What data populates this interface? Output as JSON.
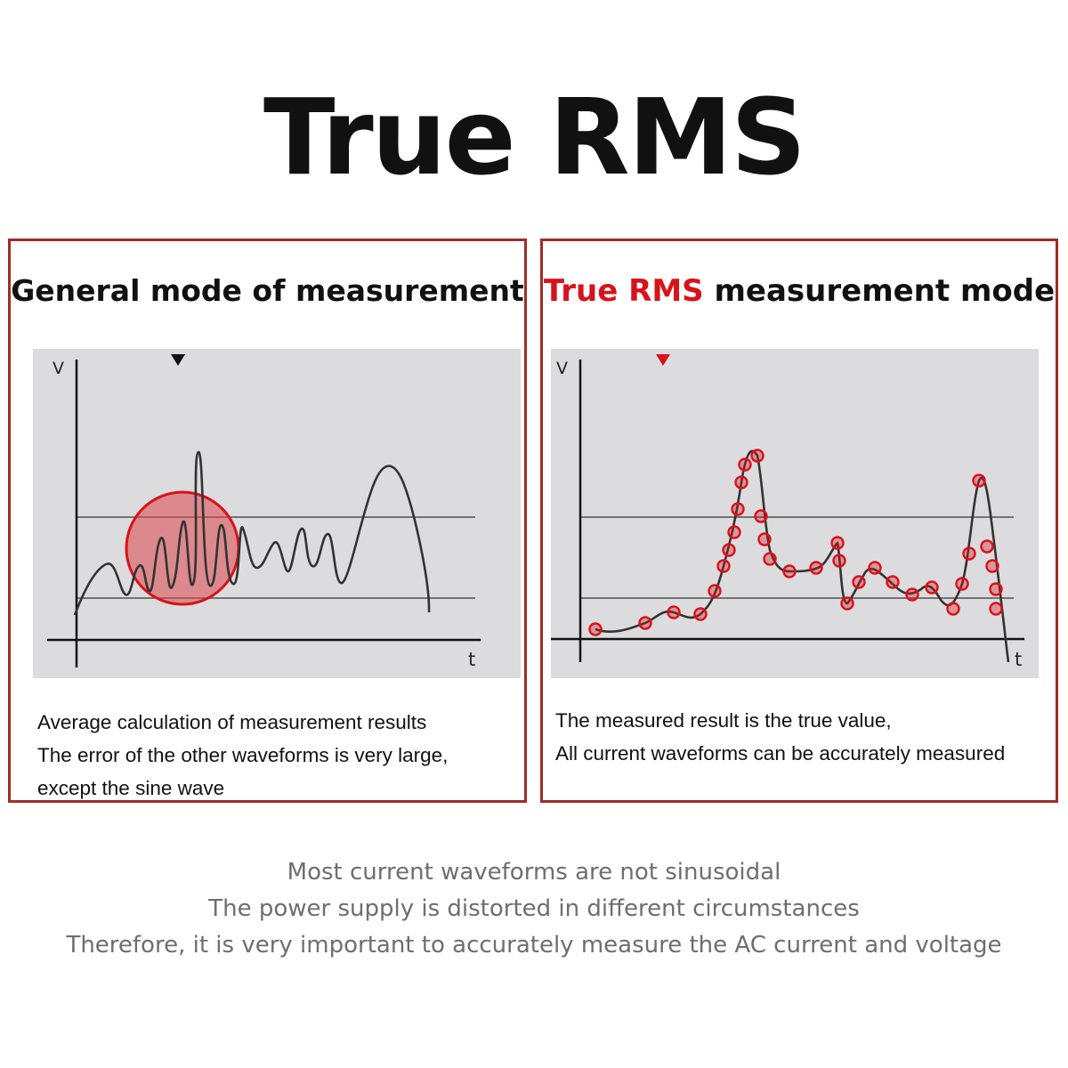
{
  "title": "True RMS",
  "colors": {
    "frame": "#a32a2a",
    "accent": "#d8121b",
    "graph_bg": "#dcdcde",
    "footer_text": "#6e6e6e"
  },
  "general_panel": {
    "heading": "General mode of measurement",
    "axis_v": "V",
    "axis_t": "t",
    "description": [
      "Average calculation of measurement results",
      "The error of the other waveforms is very large,",
      "except the sine wave"
    ]
  },
  "true_rms_panel": {
    "heading_accent": "True RMS",
    "heading_rest": " measurement mode",
    "axis_v": "V",
    "axis_t": "t",
    "description": [
      "The measured result is the true value,",
      "All current waveforms can be accurately measured"
    ]
  },
  "footer": [
    "Most current waveforms are not sinusoidal",
    "The power supply is distorted in different circumstances",
    "Therefore, it is very important to accurately measure the AC current and voltage"
  ]
}
